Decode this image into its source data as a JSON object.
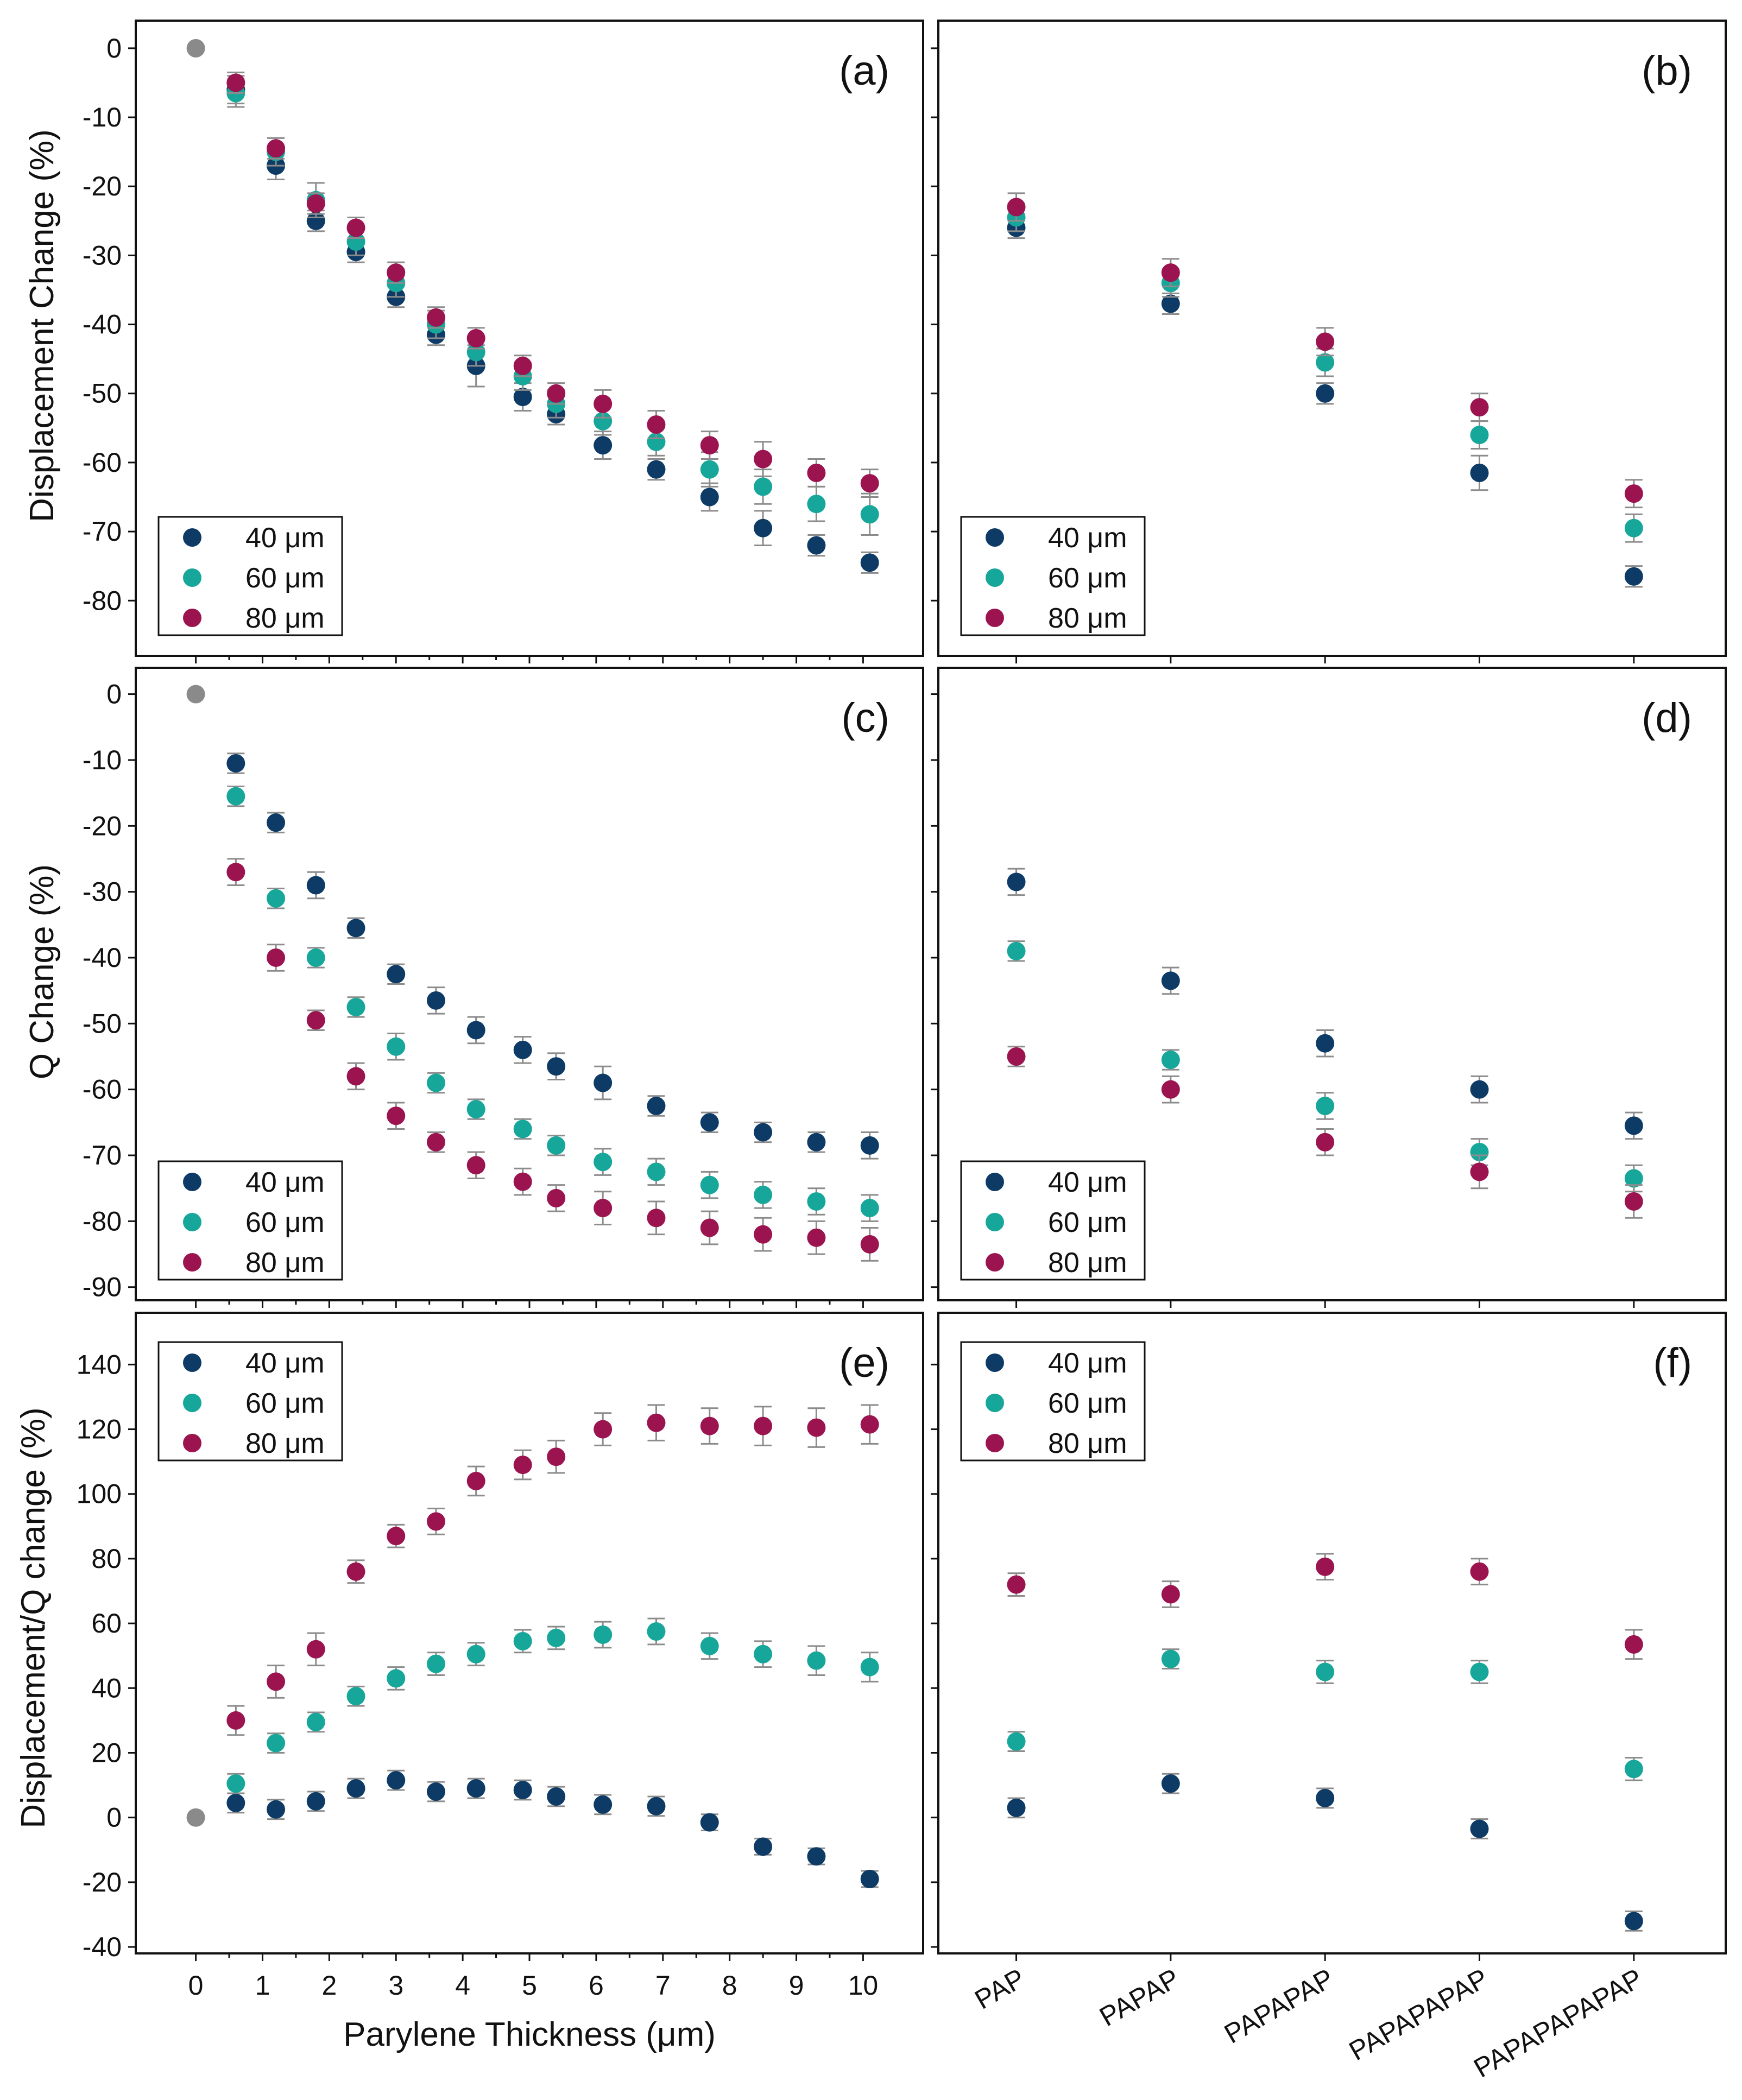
{
  "colors": {
    "40": "#0d3b66",
    "60": "#17a79a",
    "80": "#9b1450",
    "origin": "#8a8a8a",
    "errorbar": "#8c8c8c"
  },
  "chart_data": [
    {
      "id": "a",
      "type": "scatter",
      "tag": "(a)",
      "ylabel": "Displacement Change (%)",
      "xlabel": "",
      "ylim": [
        -88,
        4
      ],
      "yticks": [
        0,
        -10,
        -20,
        -30,
        -40,
        -50,
        -60,
        -70,
        -80
      ],
      "ytick_labels": [
        "0",
        "-10",
        "-20",
        "-30",
        "-40",
        "-50",
        "-60",
        "-70",
        "-80"
      ],
      "xlim": [
        -0.9,
        10.9
      ],
      "xticks": [
        0,
        1,
        2,
        3,
        4,
        5,
        6,
        7,
        8,
        9,
        10
      ],
      "xtick_labels": [
        "0",
        "1",
        "2",
        "3",
        "4",
        "5",
        "6",
        "7",
        "8",
        "9",
        "10"
      ],
      "x": [
        0.6,
        1.2,
        1.8,
        2.4,
        3.0,
        3.6,
        4.2,
        4.9,
        5.4,
        6.1,
        6.9,
        7.7,
        8.5,
        9.3,
        10.1
      ],
      "origin": [
        0,
        0
      ],
      "legend": {
        "entries": [
          "40 μm",
          "60 μm",
          "80 μm"
        ],
        "placement": "bottom-left"
      },
      "series": [
        {
          "name": "40 μm",
          "key": "40",
          "values": [
            -6,
            -17,
            -25,
            -29.5,
            -36,
            -41.5,
            -46,
            -50.5,
            -53,
            -57.5,
            -61,
            -65,
            -69.5,
            -72,
            -74.5
          ],
          "errors": [
            2,
            2,
            1.5,
            1.5,
            1.5,
            1.5,
            3,
            2,
            1.5,
            2,
            1.5,
            2,
            2.5,
            1.5,
            1.5
          ]
        },
        {
          "name": "60 μm",
          "key": "60",
          "values": [
            -6.5,
            -15,
            -22,
            -28,
            -34,
            -40,
            -44,
            -47.5,
            -51.5,
            -54,
            -57,
            -61,
            -63.5,
            -66,
            -67.5
          ],
          "errors": [
            2,
            2,
            2.5,
            2,
            2,
            2,
            2,
            2,
            2,
            2,
            2,
            2.5,
            2.5,
            2.5,
            3
          ]
        },
        {
          "name": "80 μm",
          "key": "80",
          "values": [
            -5,
            -14.5,
            -22.5,
            -26,
            -32.5,
            -39,
            -42,
            -46,
            -50,
            -51.5,
            -54.5,
            -57.5,
            -59.5,
            -61.5,
            -63
          ],
          "errors": [
            1.5,
            1.5,
            1.5,
            1.5,
            1.5,
            1.5,
            1.5,
            1.5,
            1.5,
            2,
            2,
            2,
            2.5,
            2,
            2
          ]
        }
      ]
    },
    {
      "id": "b",
      "type": "scatter",
      "tag": "(b)",
      "ylabel": "",
      "xlabel": "",
      "ylim": [
        -88,
        4
      ],
      "yticks": [
        0,
        -10,
        -20,
        -30,
        -40,
        -50,
        -60,
        -70,
        -80
      ],
      "categories": [
        "PAP",
        "PAPAP",
        "PAPAPAP",
        "PAPAPAPAP",
        "PAPAPAPAPAP"
      ],
      "legend": {
        "entries": [
          "40 μm",
          "60 μm",
          "80 μm"
        ],
        "placement": "bottom-left"
      },
      "series": [
        {
          "name": "40 μm",
          "key": "40",
          "values": [
            -26,
            -37,
            -50,
            -61.5,
            -76.5
          ],
          "errors": [
            1.5,
            1.5,
            1.5,
            2.5,
            1.5
          ]
        },
        {
          "name": "60 μm",
          "key": "60",
          "values": [
            -24.5,
            -34,
            -45.5,
            -56,
            -69.5
          ],
          "errors": [
            2,
            2,
            2,
            2,
            2
          ]
        },
        {
          "name": "80 μm",
          "key": "80",
          "values": [
            -23,
            -32.5,
            -42.5,
            -52,
            -64.5
          ],
          "errors": [
            2,
            2,
            2,
            2,
            2
          ]
        }
      ]
    },
    {
      "id": "c",
      "type": "scatter",
      "tag": "(c)",
      "ylabel": "Q Change (%)",
      "xlabel": "",
      "ylim": [
        -92,
        4
      ],
      "yticks": [
        0,
        -10,
        -20,
        -30,
        -40,
        -50,
        -60,
        -70,
        -80,
        -90
      ],
      "ytick_labels": [
        "0",
        "-10",
        "-20",
        "-30",
        "-40",
        "-50",
        "-60",
        "-70",
        "-80",
        "-90"
      ],
      "xlim": [
        -0.9,
        10.9
      ],
      "xticks": [
        0,
        1,
        2,
        3,
        4,
        5,
        6,
        7,
        8,
        9,
        10
      ],
      "x": [
        0.6,
        1.2,
        1.8,
        2.4,
        3.0,
        3.6,
        4.2,
        4.9,
        5.4,
        6.1,
        6.9,
        7.7,
        8.5,
        9.3,
        10.1
      ],
      "origin": [
        0,
        0
      ],
      "legend": {
        "entries": [
          "40 μm",
          "60 μm",
          "80 μm"
        ],
        "placement": "bottom-left"
      },
      "series": [
        {
          "name": "40 μm",
          "key": "40",
          "values": [
            -10.5,
            -19.5,
            -29,
            -35.5,
            -42.5,
            -46.5,
            -51,
            -54,
            -56.5,
            -59,
            -62.5,
            -65,
            -66.5,
            -68,
            -68.5
          ],
          "errors": [
            1.5,
            1.5,
            2,
            1.5,
            1.5,
            2,
            2,
            2,
            2,
            2.5,
            1.5,
            1.5,
            1.5,
            1.5,
            2
          ]
        },
        {
          "name": "60 μm",
          "key": "60",
          "values": [
            -15.5,
            -31,
            -40,
            -47.5,
            -53.5,
            -59,
            -63,
            -66,
            -68.5,
            -71,
            -72.5,
            -74.5,
            -76,
            -77,
            -78
          ],
          "errors": [
            1.5,
            1.5,
            1.5,
            1.5,
            2,
            1.5,
            1.5,
            1.5,
            1.5,
            2,
            2,
            2,
            2,
            2,
            2
          ]
        },
        {
          "name": "80 μm",
          "key": "80",
          "values": [
            -27,
            -40,
            -49.5,
            -58,
            -64,
            -68,
            -71.5,
            -74,
            -76.5,
            -78,
            -79.5,
            -81,
            -82,
            -82.5,
            -83.5
          ],
          "errors": [
            2,
            2,
            1.5,
            2,
            2,
            1.5,
            2,
            2,
            2,
            2.5,
            2.5,
            2.5,
            2.5,
            2.5,
            2.5
          ]
        }
      ]
    },
    {
      "id": "d",
      "type": "scatter",
      "tag": "(d)",
      "ylabel": "",
      "xlabel": "",
      "ylim": [
        -92,
        4
      ],
      "yticks": [
        0,
        -10,
        -20,
        -30,
        -40,
        -50,
        -60,
        -70,
        -80,
        -90
      ],
      "categories": [
        "PAP",
        "PAPAP",
        "PAPAPAP",
        "PAPAPAPAP",
        "PAPAPAPAPAP"
      ],
      "legend": {
        "entries": [
          "40 μm",
          "60 μm",
          "80 μm"
        ],
        "placement": "bottom-left"
      },
      "series": [
        {
          "name": "40 μm",
          "key": "40",
          "values": [
            -28.5,
            -43.5,
            -53,
            -60,
            -65.5
          ],
          "errors": [
            2,
            2,
            2,
            2,
            2
          ]
        },
        {
          "name": "60 μm",
          "key": "60",
          "values": [
            -39,
            -55.5,
            -62.5,
            -69.5,
            -73.5
          ],
          "errors": [
            1.5,
            1.5,
            2,
            2,
            2
          ]
        },
        {
          "name": "80 μm",
          "key": "80",
          "values": [
            -55,
            -60,
            -68,
            -72.5,
            -77
          ],
          "errors": [
            1.5,
            2,
            2,
            2.5,
            2.5
          ]
        }
      ]
    },
    {
      "id": "e",
      "type": "scatter",
      "tag": "(e)",
      "ylabel": "Displacement/Q change (%)",
      "xlabel": "Parylene Thickness (μm)",
      "ylim": [
        -42,
        156
      ],
      "yticks": [
        140,
        120,
        100,
        80,
        60,
        40,
        20,
        0,
        -20,
        -40
      ],
      "ytick_labels": [
        "140",
        "120",
        "100",
        "80",
        "60",
        "40",
        "20",
        "0",
        "-20",
        "-40"
      ],
      "xlim": [
        -0.9,
        10.9
      ],
      "xticks": [
        0,
        1,
        2,
        3,
        4,
        5,
        6,
        7,
        8,
        9,
        10
      ],
      "xtick_labels": [
        "0",
        "1",
        "2",
        "3",
        "4",
        "5",
        "6",
        "7",
        "8",
        "9",
        "10"
      ],
      "x": [
        0.6,
        1.2,
        1.8,
        2.4,
        3.0,
        3.6,
        4.2,
        4.9,
        5.4,
        6.1,
        6.9,
        7.7,
        8.5,
        9.3,
        10.1
      ],
      "origin": [
        0,
        0
      ],
      "legend": {
        "entries": [
          "40 μm",
          "60 μm",
          "80 μm"
        ],
        "placement": "top-left"
      },
      "series": [
        {
          "name": "40 μm",
          "key": "40",
          "values": [
            4.5,
            2.5,
            5,
            9,
            11.5,
            8,
            9,
            8.5,
            6.5,
            4,
            3.5,
            -1.5,
            -9,
            -12,
            -19
          ],
          "errors": [
            3,
            3,
            3,
            3,
            3,
            3,
            3,
            3,
            3,
            3,
            3,
            2.5,
            2.5,
            2.5,
            2.5
          ]
        },
        {
          "name": "60 μm",
          "key": "60",
          "values": [
            10.5,
            23,
            29.5,
            37.5,
            43,
            47.5,
            50.5,
            54.5,
            55.5,
            56.5,
            57.5,
            53,
            50.5,
            48.5,
            46.5
          ],
          "errors": [
            3,
            3,
            3,
            3,
            3.5,
            3.5,
            3.5,
            3.5,
            3.5,
            4,
            4,
            4,
            4,
            4.5,
            4.5
          ]
        },
        {
          "name": "80 μm",
          "key": "80",
          "values": [
            30,
            42,
            52,
            76,
            87,
            91.5,
            104,
            109,
            111.5,
            120,
            122,
            121,
            121,
            120.5,
            121.5
          ],
          "errors": [
            4.5,
            5,
            5,
            3.5,
            3.5,
            4,
            4.5,
            4.5,
            5,
            5,
            5.5,
            5.5,
            6,
            6,
            6
          ]
        }
      ]
    },
    {
      "id": "f",
      "type": "scatter",
      "tag": "(f)",
      "ylabel": "",
      "xlabel": "",
      "ylim": [
        -42,
        156
      ],
      "yticks": [
        140,
        120,
        100,
        80,
        60,
        40,
        20,
        0,
        -20,
        -40
      ],
      "categories": [
        "PAP",
        "PAPAP",
        "PAPAPAP",
        "PAPAPAPAP",
        "PAPAPAPAPAP"
      ],
      "legend": {
        "entries": [
          "40 μm",
          "60 μm",
          "80 μm"
        ],
        "placement": "top-left"
      },
      "series": [
        {
          "name": "40 μm",
          "key": "40",
          "values": [
            3,
            10.5,
            6,
            -3.5,
            -32
          ],
          "errors": [
            3,
            3,
            3,
            3,
            3
          ]
        },
        {
          "name": "60 μm",
          "key": "60",
          "values": [
            23.5,
            49,
            45,
            45,
            15
          ],
          "errors": [
            3,
            3,
            3.5,
            3.5,
            3.5
          ]
        },
        {
          "name": "80 μm",
          "key": "80",
          "values": [
            72,
            69,
            77.5,
            76,
            53.5
          ],
          "errors": [
            3.5,
            4,
            4,
            4,
            4.5
          ]
        }
      ]
    }
  ]
}
